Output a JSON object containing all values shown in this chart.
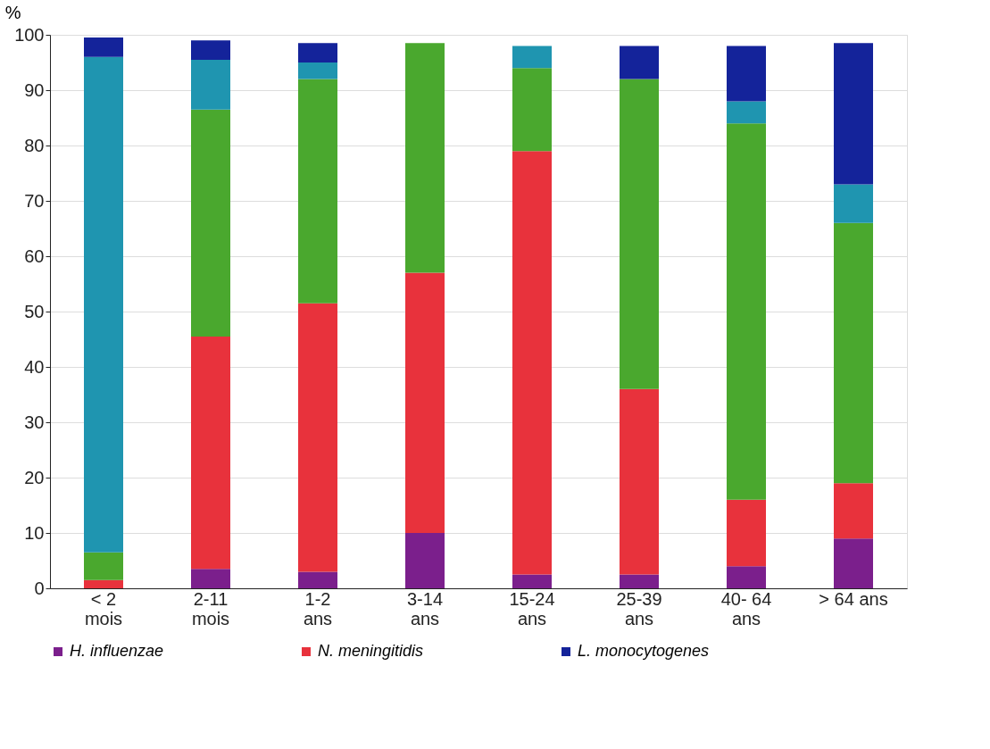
{
  "chart_data": {
    "type": "bar",
    "stacked": true,
    "ylabel": "%",
    "categories": [
      "< 2\nmois",
      "2-11\nmois",
      "1-2\nans",
      "3-14\nans",
      "15-24\nans",
      "25-39\nans",
      "40- 64\nans",
      "> 64 ans"
    ],
    "series": [
      {
        "name": "H. influenzae",
        "color": "#7b1f8c",
        "values": [
          0,
          3.5,
          3,
          10,
          2.5,
          2.5,
          4,
          9
        ]
      },
      {
        "name": "N. meningitidis",
        "color": "#e8323c",
        "values": [
          1.5,
          42,
          48.5,
          47,
          76.5,
          33.5,
          12,
          10
        ]
      },
      {
        "color": "#4aa82e",
        "values": [
          5,
          41,
          40.5,
          41.5,
          15,
          56,
          68,
          47
        ]
      },
      {
        "color": "#1f95b0",
        "values": [
          89.5,
          9,
          3,
          0,
          4,
          0,
          4,
          7
        ]
      },
      {
        "name": "L. monocytogenes",
        "color": "#14239a",
        "values": [
          3.5,
          3.5,
          3.5,
          0,
          0,
          6,
          10,
          25.5
        ]
      }
    ],
    "ylim": [
      0,
      100
    ],
    "yticks": [
      0,
      10,
      20,
      30,
      40,
      50,
      60,
      70,
      80,
      90,
      100
    ],
    "grid": "y",
    "legend": "bottom"
  }
}
